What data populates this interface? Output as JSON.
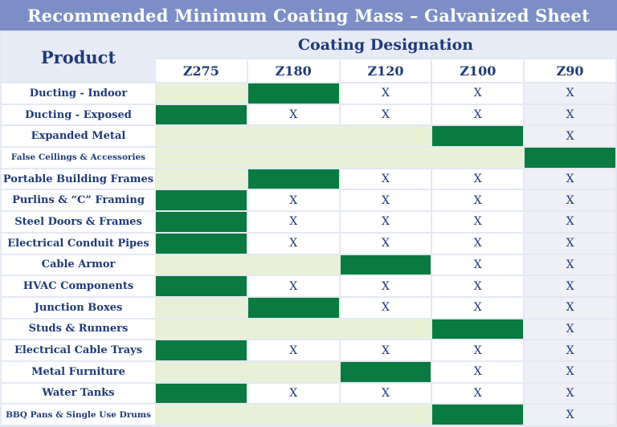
{
  "title": "Recommended Minimum Coating Mass – Galvanized Sheet",
  "product_header": "Product",
  "designation_header": "Coating Designation",
  "columns": [
    "Z275",
    "Z180",
    "Z120",
    "Z100",
    "Z90"
  ],
  "mark": "X",
  "colors": {
    "title_bar": "#7b8fc6",
    "header_text": "#1f3a78",
    "recommended": "#0a7a3e",
    "exceeds": "#e8f1d6",
    "background": "#e3e8f3"
  },
  "legend_note": "",
  "rows": [
    {
      "product": "Ducting - Indoor",
      "recommended": "Z180"
    },
    {
      "product": "Ducting - Exposed",
      "recommended": "Z275"
    },
    {
      "product": "Expanded Metal",
      "recommended": "Z100"
    },
    {
      "product": "False Ceilings & Accessories",
      "recommended": "Z90"
    },
    {
      "product": "Portable Building Frames",
      "recommended": "Z180"
    },
    {
      "product": "Purlins & “C” Framing",
      "recommended": "Z275"
    },
    {
      "product": "Steel Doors & Frames",
      "recommended": "Z275"
    },
    {
      "product": "Electrical Conduit Pipes",
      "recommended": "Z275"
    },
    {
      "product": "Cable Armor",
      "recommended": "Z120"
    },
    {
      "product": "HVAC Components",
      "recommended": "Z275"
    },
    {
      "product": "Junction Boxes",
      "recommended": "Z180"
    },
    {
      "product": "Studs & Runners",
      "recommended": "Z100"
    },
    {
      "product": "Electrical Cable Trays",
      "recommended": "Z275"
    },
    {
      "product": "Metal Furniture",
      "recommended": "Z120"
    },
    {
      "product": "Water Tanks",
      "recommended": "Z275"
    },
    {
      "product": "BBQ Pans & Single Use Drums",
      "recommended": "Z100"
    }
  ]
}
